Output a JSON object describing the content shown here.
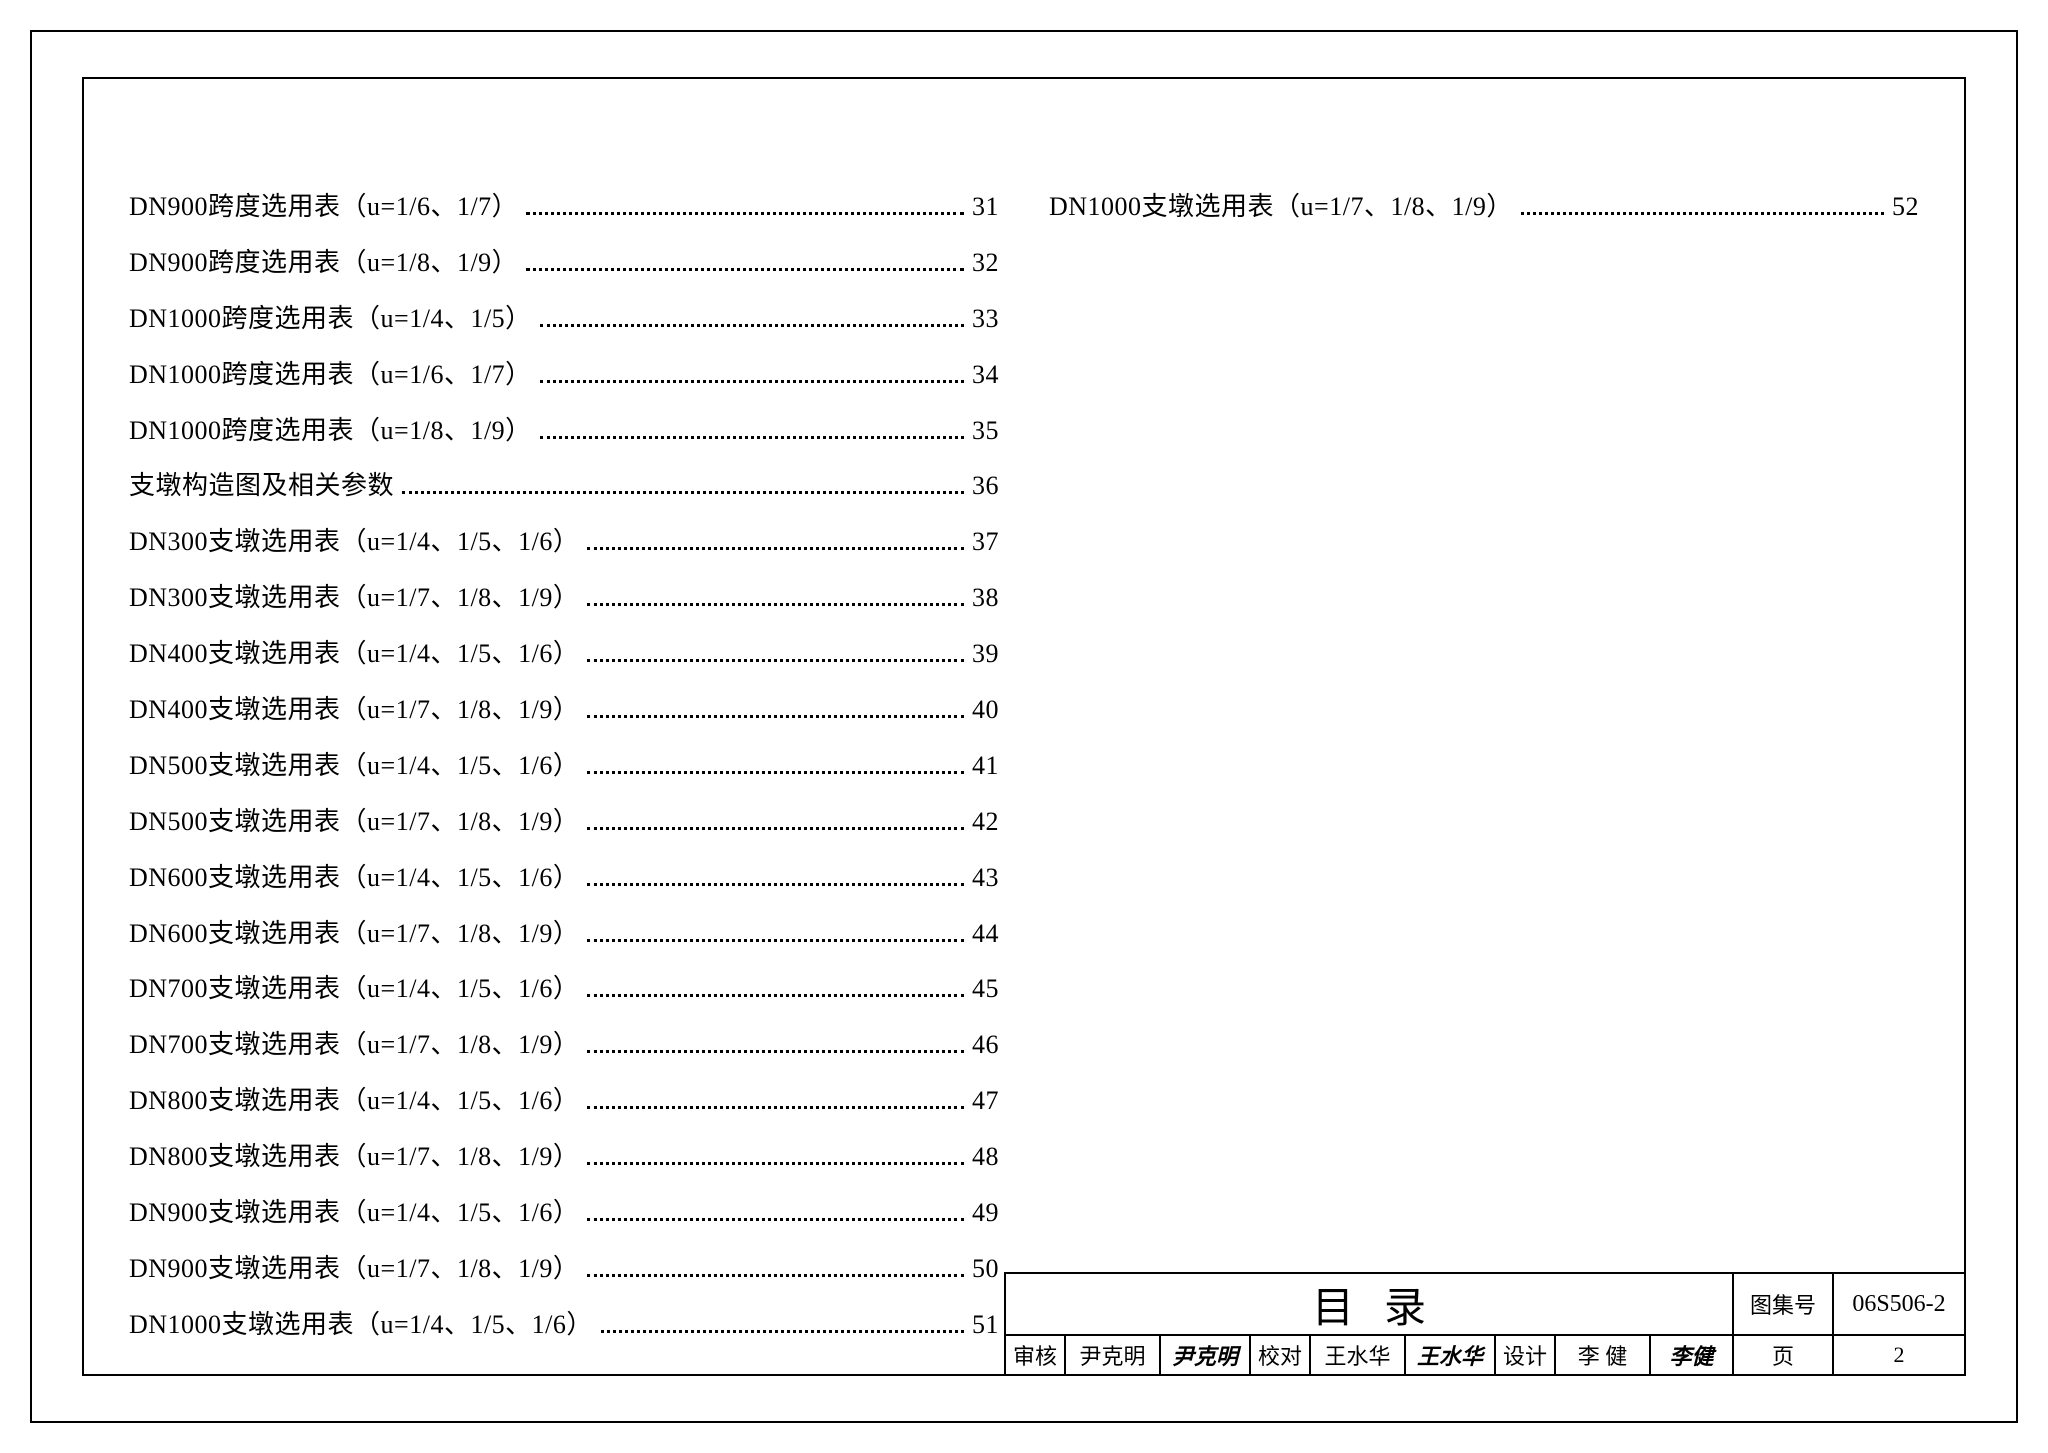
{
  "toc": {
    "left": [
      {
        "label": "DN900跨度选用表（u=1/6、1/7）",
        "page": "31"
      },
      {
        "label": "DN900跨度选用表（u=1/8、1/9）",
        "page": "32"
      },
      {
        "label": "DN1000跨度选用表（u=1/4、1/5）",
        "page": "33"
      },
      {
        "label": "DN1000跨度选用表（u=1/6、1/7）",
        "page": "34"
      },
      {
        "label": "DN1000跨度选用表（u=1/8、1/9）",
        "page": "35"
      },
      {
        "label": "支墩构造图及相关参数",
        "page": "36"
      },
      {
        "label": "DN300支墩选用表（u=1/4、1/5、1/6）",
        "page": "37"
      },
      {
        "label": "DN300支墩选用表（u=1/7、1/8、1/9）",
        "page": "38"
      },
      {
        "label": "DN400支墩选用表（u=1/4、1/5、1/6）",
        "page": "39"
      },
      {
        "label": "DN400支墩选用表（u=1/7、1/8、1/9）",
        "page": "40"
      },
      {
        "label": "DN500支墩选用表（u=1/4、1/5、1/6）",
        "page": "41"
      },
      {
        "label": "DN500支墩选用表（u=1/7、1/8、1/9）",
        "page": "42"
      },
      {
        "label": "DN600支墩选用表（u=1/4、1/5、1/6）",
        "page": "43"
      },
      {
        "label": "DN600支墩选用表（u=1/7、1/8、1/9）",
        "page": "44"
      },
      {
        "label": "DN700支墩选用表（u=1/4、1/5、1/6）",
        "page": "45"
      },
      {
        "label": "DN700支墩选用表（u=1/7、1/8、1/9）",
        "page": "46"
      },
      {
        "label": "DN800支墩选用表（u=1/4、1/5、1/6）",
        "page": "47"
      },
      {
        "label": "DN800支墩选用表（u=1/7、1/8、1/9）",
        "page": "48"
      },
      {
        "label": "DN900支墩选用表（u=1/4、1/5、1/6）",
        "page": "49"
      },
      {
        "label": "DN900支墩选用表（u=1/7、1/8、1/9）",
        "page": "50"
      },
      {
        "label": "DN1000支墩选用表（u=1/4、1/5、1/6）",
        "page": "51"
      }
    ],
    "right": [
      {
        "label": "DN1000支墩选用表（u=1/7、1/8、1/9）",
        "page": "52"
      }
    ]
  },
  "titleblock": {
    "title": "目录",
    "atlas_label": "图集号",
    "atlas_value": "06S506-2",
    "page_label": "页",
    "page_value": "2",
    "review_label": "审核",
    "review_name": "尹克明",
    "review_sig": "尹克明",
    "check_label": "校对",
    "check_name": "王水华",
    "check_sig": "王水华",
    "design_label": "设计",
    "design_name": "李 健",
    "design_sig": "李健"
  },
  "style": {
    "page_bg": "#ffffff",
    "border_color": "#000000",
    "text_color": "#000000",
    "toc_fontsize": 26,
    "title_fontsize": 42,
    "cell_fontsize": 22
  }
}
